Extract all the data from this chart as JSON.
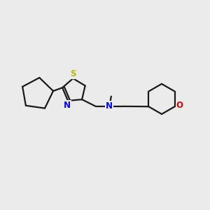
{
  "background_color": "#ebebeb",
  "bond_color": "#1a1a1a",
  "S_color": "#b8b800",
  "N_color": "#0000ee",
  "O_color": "#dd0000",
  "line_width": 1.6,
  "figsize": [
    3.0,
    3.0
  ],
  "dpi": 100,
  "xlim": [
    0,
    12
  ],
  "ylim": [
    0,
    10
  ]
}
